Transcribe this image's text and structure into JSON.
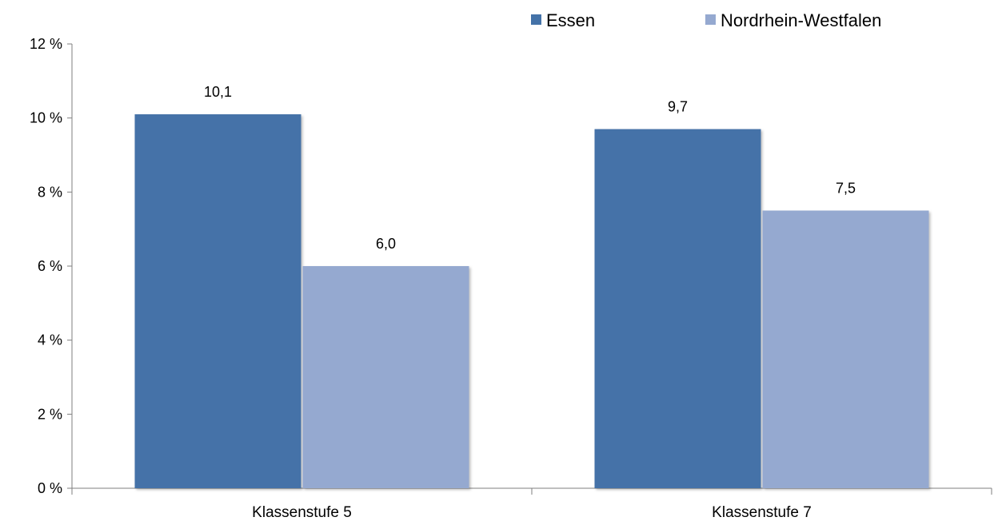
{
  "chart_data": {
    "type": "bar",
    "categories": [
      "Klassenstufe 5",
      "Klassenstufe 7"
    ],
    "series": [
      {
        "name": "Essen",
        "values": [
          10.1,
          9.7
        ],
        "labels": [
          "10,1",
          "9,7"
        ],
        "color": "#4472A8"
      },
      {
        "name": "Nordrhein-Westfalen",
        "values": [
          6.0,
          7.5
        ],
        "labels": [
          "6,0",
          "7,5"
        ],
        "color": "#95A9D0"
      }
    ],
    "yticks": [
      0,
      2,
      4,
      6,
      8,
      10,
      12
    ],
    "ytick_labels": [
      "0 %",
      "2 %",
      "4 %",
      "6 %",
      "8 %",
      "10 %",
      "12 %"
    ],
    "ylim": [
      0,
      12
    ],
    "grid": false,
    "legend_position": "top-right",
    "axis_color": "#7f7f7f"
  }
}
